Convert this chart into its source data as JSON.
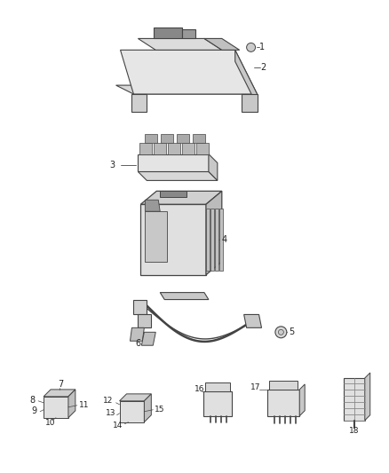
{
  "bg_color": "#ffffff",
  "line_color": "#444444",
  "fill_light": "#e8e8e8",
  "fill_mid": "#cccccc",
  "fill_dark": "#aaaaaa",
  "fig_width": 4.38,
  "fig_height": 5.33,
  "dpi": 100
}
